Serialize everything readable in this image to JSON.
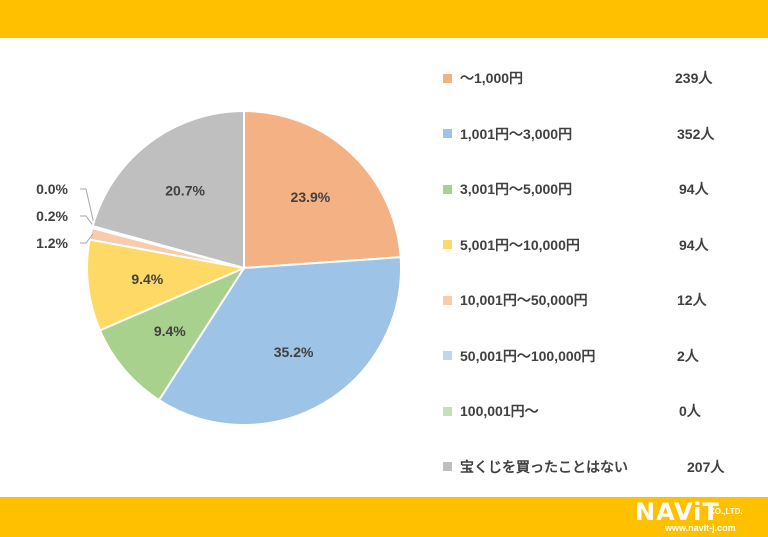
{
  "chart_data": {
    "type": "pie",
    "slices": [
      {
        "label": "〜1,000円",
        "count": "239人",
        "percent": 23.9,
        "percent_label": "23.9%",
        "color": "#F4B183"
      },
      {
        "label": "1,001円〜3,000円",
        "count": "352人",
        "percent": 35.2,
        "percent_label": "35.2%",
        "color": "#9DC3E6"
      },
      {
        "label": "3,001円〜5,000円",
        "count": "94人",
        "percent": 9.4,
        "percent_label": "9.4%",
        "color": "#A9D18E"
      },
      {
        "label": "5,001円〜10,000円",
        "count": "94人",
        "percent": 9.4,
        "percent_label": "9.4%",
        "color": "#FFD966"
      },
      {
        "label": "10,001円〜50,000円",
        "count": "12人",
        "percent": 1.2,
        "percent_label": "1.2%",
        "color": "#F8CBAD"
      },
      {
        "label": "50,001円〜100,000円",
        "count": "2人",
        "percent": 0.2,
        "percent_label": "0.2%",
        "color": "#BDD7EE"
      },
      {
        "label": "100,001円〜",
        "count": "0人",
        "percent": 0.0,
        "percent_label": "0.0%",
        "color": "#C5E0B4"
      },
      {
        "label": "宝くじを買ったことはない",
        "count": "207人",
        "percent": 20.7,
        "percent_label": "20.7%",
        "color": "#BFBFBF"
      }
    ],
    "legend_position": "right",
    "start_angle": "12 o'clock, clockwise"
  },
  "logo": {
    "main": "NAViT",
    "suffix": "CO.,LTD.",
    "url": "www.navit-j.com"
  },
  "colors": {
    "band": "#FFC000",
    "text": "#404040"
  }
}
